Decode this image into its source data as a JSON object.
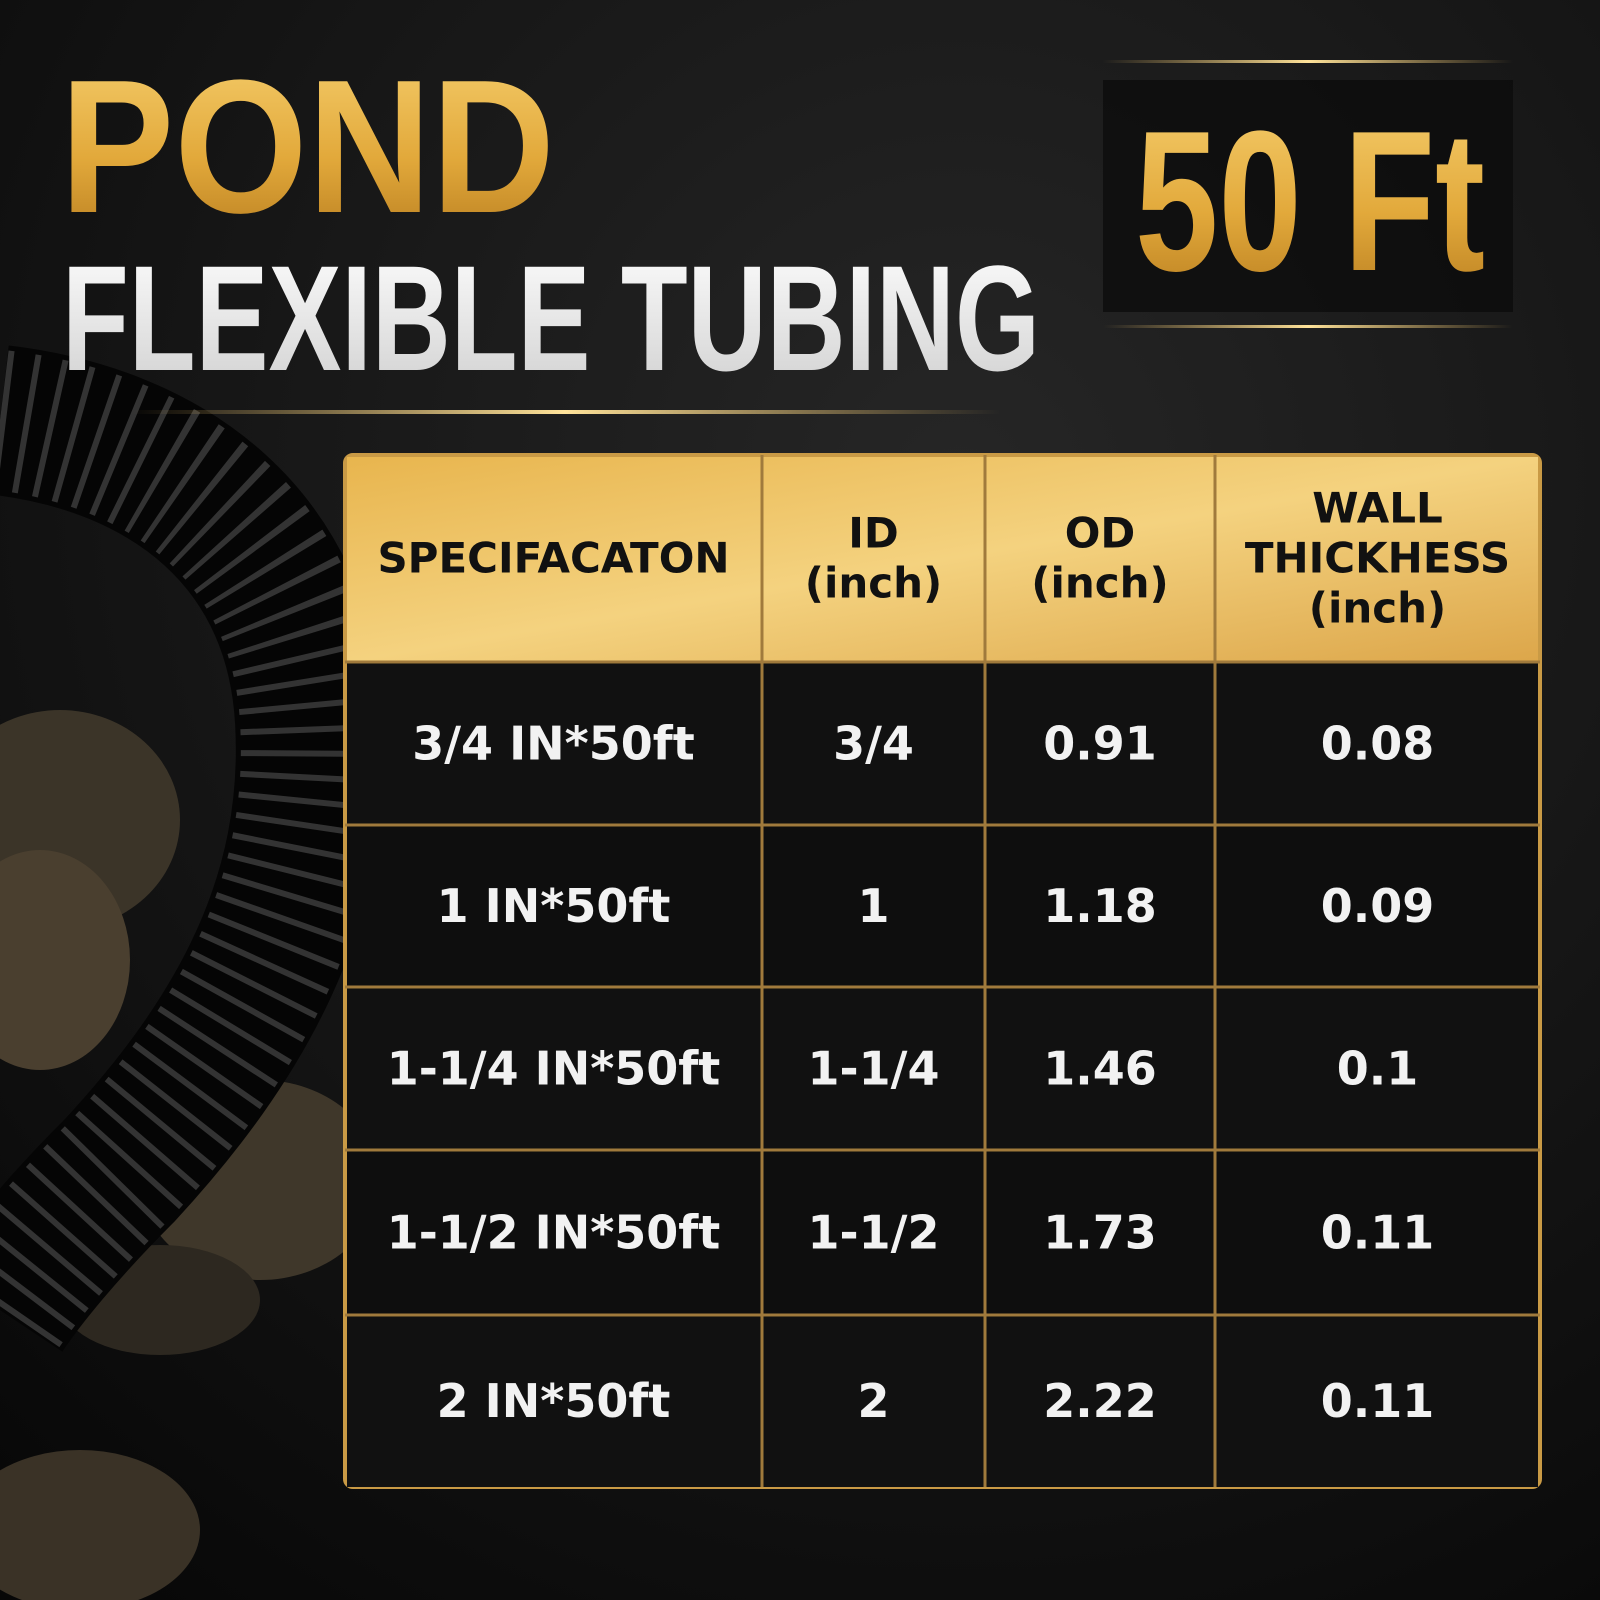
{
  "header": {
    "title_line1": "POND",
    "title_line2": "FLEXIBLE TUBING",
    "badge": "50 Ft"
  },
  "table": {
    "columns": [
      [
        "SPECIFACATON"
      ],
      [
        "ID",
        "(inch)"
      ],
      [
        "OD",
        "(inch)"
      ],
      [
        "WALL",
        "THICKHESS",
        "(inch)"
      ]
    ],
    "rows": [
      [
        "3/4 IN*50ft",
        "3/4",
        "0.91",
        "0.08"
      ],
      [
        "1 IN*50ft",
        "1",
        "1.18",
        "0.09"
      ],
      [
        "1-1/4 IN*50ft",
        "1-1/4",
        "1.46",
        "0.1"
      ],
      [
        "1-1/2 IN*50ft",
        "1-1/2",
        "1.73",
        "0.11"
      ],
      [
        "2 IN*50ft",
        "2",
        "2.22",
        "0.11"
      ]
    ]
  }
}
